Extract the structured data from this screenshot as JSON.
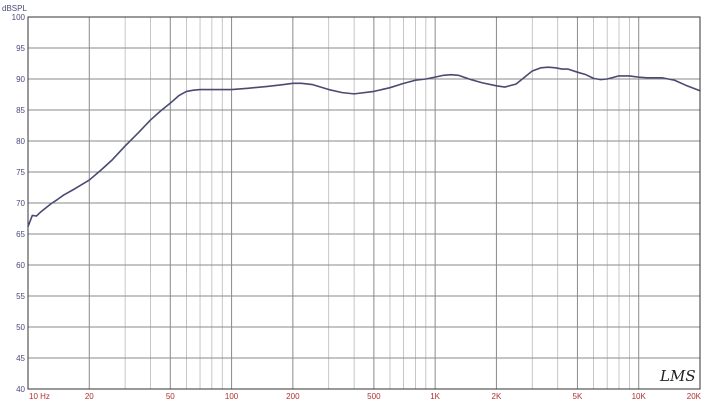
{
  "chart_data": {
    "type": "line",
    "title": "",
    "ylabel": "dBSPL",
    "xlabel": "",
    "x_scale": "log",
    "xlim": [
      10,
      20000
    ],
    "ylim": [
      40,
      100
    ],
    "grid": true,
    "y_ticks": [
      {
        "value": 100,
        "label": "100"
      },
      {
        "value": 95,
        "label": "95"
      },
      {
        "value": 90,
        "label": "90"
      },
      {
        "value": 85,
        "label": "85"
      },
      {
        "value": 80,
        "label": "80"
      },
      {
        "value": 75,
        "label": "75"
      },
      {
        "value": 70,
        "label": "70"
      },
      {
        "value": 65,
        "label": "65"
      },
      {
        "value": 60,
        "label": "60"
      },
      {
        "value": 55,
        "label": "55"
      },
      {
        "value": 50,
        "label": "50"
      },
      {
        "value": 45,
        "label": "45"
      },
      {
        "value": 40,
        "label": "40"
      }
    ],
    "x_ticks": [
      {
        "value": 10,
        "label": "10  Hz"
      },
      {
        "value": 20,
        "label": "20"
      },
      {
        "value": 50,
        "label": "50"
      },
      {
        "value": 100,
        "label": "100"
      },
      {
        "value": 200,
        "label": "200"
      },
      {
        "value": 500,
        "label": "500"
      },
      {
        "value": 1000,
        "label": "1K"
      },
      {
        "value": 2000,
        "label": "2K"
      },
      {
        "value": 5000,
        "label": "5K"
      },
      {
        "value": 10000,
        "label": "10K"
      },
      {
        "value": 20000,
        "label": "20K"
      }
    ],
    "series": [
      {
        "color": "#4a4a72",
        "x": [
          10,
          10.5,
          11,
          11.5,
          12,
          13,
          14,
          15,
          17,
          20,
          23,
          26,
          30,
          35,
          40,
          45,
          50,
          55,
          60,
          65,
          70,
          80,
          90,
          100,
          120,
          150,
          180,
          200,
          220,
          250,
          300,
          350,
          400,
          500,
          600,
          700,
          800,
          900,
          1000,
          1100,
          1200,
          1300,
          1500,
          1700,
          2000,
          2200,
          2500,
          2800,
          3000,
          3300,
          3600,
          3900,
          4200,
          4500,
          5000,
          5500,
          6000,
          6500,
          7000,
          8000,
          9000,
          10000,
          11000,
          12000,
          13000,
          15000,
          17000,
          20000
        ],
        "y": [
          66.2,
          68.0,
          67.9,
          68.5,
          69.0,
          69.9,
          70.6,
          71.3,
          72.3,
          73.7,
          75.4,
          77.0,
          79.2,
          81.4,
          83.4,
          84.9,
          86.1,
          87.3,
          88.0,
          88.2,
          88.3,
          88.3,
          88.3,
          88.3,
          88.5,
          88.8,
          89.1,
          89.3,
          89.3,
          89.1,
          88.3,
          87.8,
          87.6,
          88.0,
          88.6,
          89.3,
          89.8,
          90.0,
          90.3,
          90.6,
          90.7,
          90.6,
          89.9,
          89.4,
          88.9,
          88.7,
          89.2,
          90.5,
          91.3,
          91.8,
          91.9,
          91.8,
          91.6,
          91.6,
          91.1,
          90.7,
          90.1,
          89.9,
          90.0,
          90.5,
          90.5,
          90.3,
          90.2,
          90.2,
          90.2,
          89.8,
          89.0,
          88.1
        ]
      }
    ]
  },
  "branding": {
    "logo_text": "LMS"
  }
}
